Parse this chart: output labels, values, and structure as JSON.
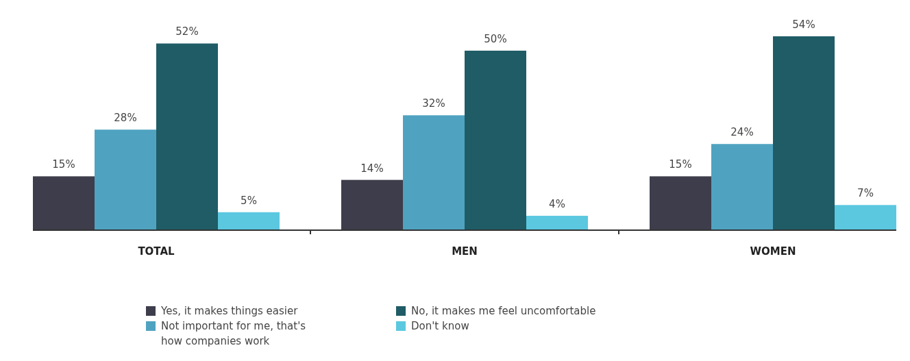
{
  "chart_data": {
    "type": "bar",
    "categories": [
      "TOTAL",
      "MEN",
      "WOMEN"
    ],
    "series": [
      {
        "name": "Yes, it makes things easier",
        "color": "#3d3d4b",
        "values": [
          15,
          14,
          15
        ],
        "value_labels": [
          "15%",
          "14%",
          "15%"
        ]
      },
      {
        "name": "Not important for me, that's how companies work",
        "color": "#4fa3c0",
        "values": [
          28,
          32,
          24
        ],
        "value_labels": [
          "28%",
          "32%",
          "24%"
        ]
      },
      {
        "name": "No, it makes me feel uncomfortable",
        "color": "#1f5c66",
        "values": [
          52,
          50,
          54
        ],
        "value_labels": [
          "52%",
          "50%",
          "54%"
        ]
      },
      {
        "name": "Don't know",
        "color": "#5bc8e0",
        "values": [
          5,
          4,
          7
        ],
        "value_labels": [
          "5%",
          "4%",
          "7%"
        ]
      }
    ],
    "legend": "bottom"
  }
}
